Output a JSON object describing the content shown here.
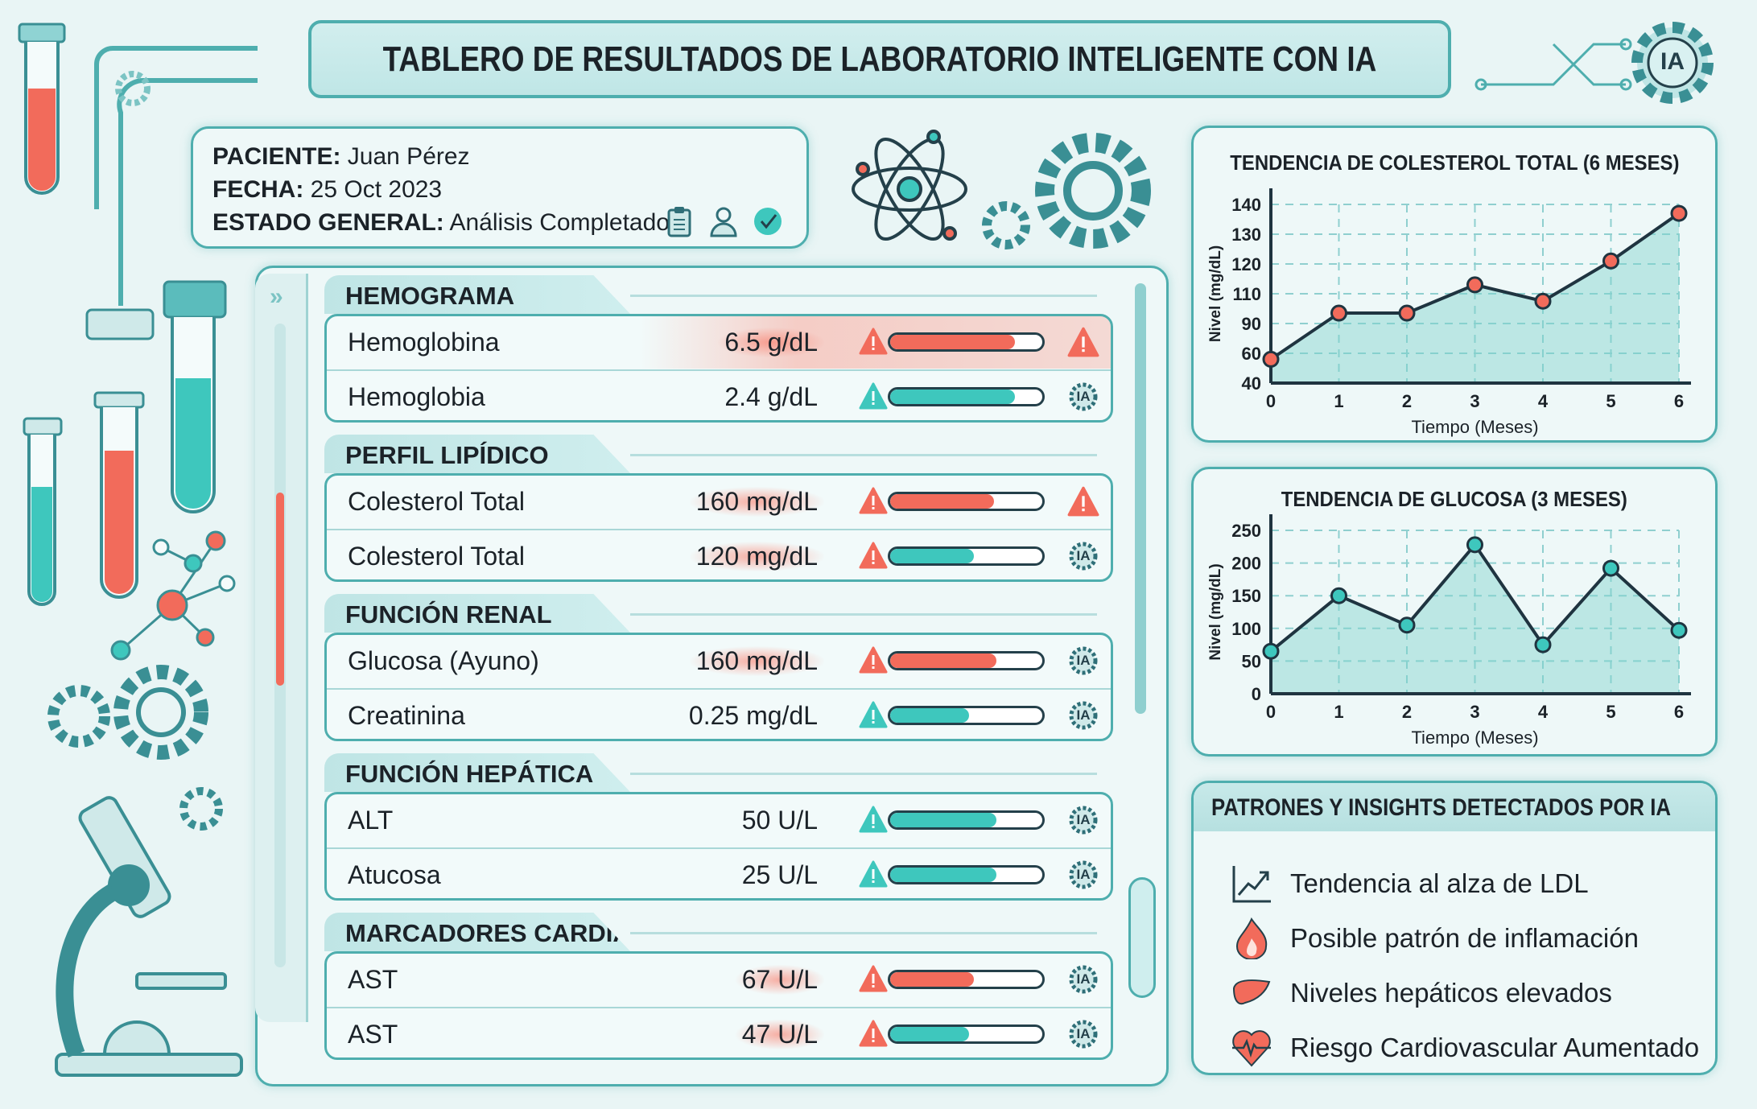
{
  "header": {
    "title": "TABLERO DE RESULTADOS DE LABORATORIO INTELIGENTE CON IA",
    "ai_badge": "IA"
  },
  "patient": {
    "name_label": "PACIENTE:",
    "name": "Juan Pérez",
    "date_label": "FECHA:",
    "date": "25 Oct 2023",
    "status_label": "ESTADO GENERAL:",
    "status": "Análisis Completado"
  },
  "colors": {
    "accent": "#4eaeae",
    "teal": "#3ec7bd",
    "alert": "#f26b5b",
    "text": "#1b2228"
  },
  "sections": [
    {
      "title": "HEMOGRAMA",
      "rows": [
        {
          "name": "Hemoglobina",
          "value": "6.5 g/dL",
          "status": "alert",
          "level": 0.82,
          "end_icon": "warning",
          "row_alert": true
        },
        {
          "name": "Hemoglobia",
          "value": "2.4 g/dL",
          "status": "normal",
          "level": 0.82,
          "end_icon": "ia"
        }
      ]
    },
    {
      "title": "PERFIL LIPÍDICO",
      "rows": [
        {
          "name": "Colesterol Total",
          "value": "160 mg/dL",
          "status": "alert",
          "level": 0.68,
          "end_icon": "warning",
          "value_glow": true
        },
        {
          "name": "Colesterol Total",
          "value": "120 mg/dL",
          "status": "alert",
          "bar": "normal",
          "level": 0.55,
          "end_icon": "ia",
          "value_glow": true
        }
      ]
    },
    {
      "title": "FUNCIÓN RENAL",
      "rows": [
        {
          "name": "Glucosa (Ayuno)",
          "value": "160 mg/dL",
          "status": "alert",
          "level": 0.7,
          "end_icon": "ia",
          "value_glow": true
        },
        {
          "name": "Creatinina",
          "value": "0.25 mg/dL",
          "status": "normal",
          "level": 0.52,
          "end_icon": "ia"
        }
      ]
    },
    {
      "title": "FUNCIÓN HEPÁTICA",
      "rows": [
        {
          "name": "ALT",
          "value": "50 U/L",
          "status": "normal",
          "level": 0.7,
          "end_icon": "ia"
        },
        {
          "name": "Atucosa",
          "value": "25 U/L",
          "status": "normal",
          "level": 0.7,
          "end_icon": "ia"
        }
      ]
    },
    {
      "title": "MARCADORES CARDÍACOS",
      "rows": [
        {
          "name": "AST",
          "value": "67 U/L",
          "status": "alert",
          "level": 0.55,
          "end_icon": "ia",
          "value_glow": true
        },
        {
          "name": "AST",
          "value": "47 U/L",
          "status": "alert",
          "bar": "normal",
          "level": 0.52,
          "end_icon": "ia",
          "value_glow": true
        }
      ]
    }
  ],
  "chart_data": [
    {
      "type": "line",
      "title": "TENDENCIA DE COLESTEROL TOTAL (6 MESES)",
      "xlabel": "Tiempo (Meses)",
      "ylabel": "Nivel (mg/dL)",
      "x": [
        0,
        1,
        2,
        3,
        4,
        5,
        6
      ],
      "values": [
        56,
        97,
        97,
        113,
        105,
        121,
        137
      ],
      "yticks": [
        40,
        60,
        90,
        110,
        120,
        130,
        140
      ],
      "xticks": [
        0,
        1,
        2,
        3,
        4,
        5,
        6
      ],
      "grid": true,
      "marker_color": "#f26b5b",
      "fill": "area"
    },
    {
      "type": "line",
      "title": "TENDENCIA DE GLUCOSA (3 MESES)",
      "xlabel": "Tiempo (Meses)",
      "ylabel": "Nivel (mg/dL)",
      "x": [
        0,
        1,
        2,
        3,
        4,
        5,
        6
      ],
      "values": [
        65,
        150,
        105,
        228,
        75,
        192,
        97
      ],
      "yticks": [
        0,
        50,
        100,
        150,
        200,
        250
      ],
      "xticks": [
        0,
        1,
        2,
        3,
        4,
        5,
        6
      ],
      "ylim": [
        0,
        250
      ],
      "grid": true,
      "marker_color": "#3ec7bd",
      "fill": "area"
    }
  ],
  "insights": {
    "title": "PATRONES Y INSIGHTS DETECTADOS POR IA",
    "items": [
      {
        "icon": "trend-up-icon",
        "text": "Tendencia al alza de LDL"
      },
      {
        "icon": "flame-icon",
        "text": "Posible patrón de inflamación"
      },
      {
        "icon": "liver-icon",
        "text": "Niveles hepáticos elevados"
      },
      {
        "icon": "heart-pulse-icon",
        "text": "Riesgo Cardiovascular Aumentado"
      }
    ]
  }
}
